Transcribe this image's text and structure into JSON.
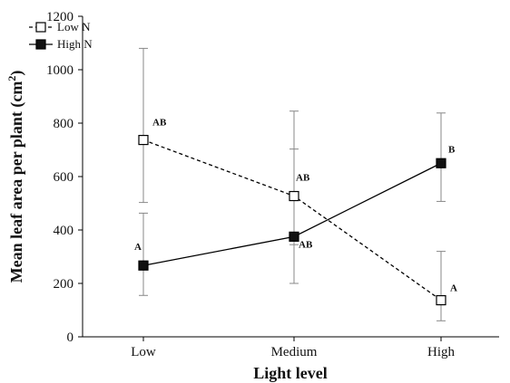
{
  "chart_data": {
    "type": "line",
    "title": "",
    "xlabel": "Light level",
    "ylabel": "Mean leaf area per plant (cm",
    "ylabel_sup": "2",
    "ylabel_close": ")",
    "categories": [
      "Low",
      "Medium",
      "High"
    ],
    "ylim": [
      0,
      1200
    ],
    "yticks": [
      0,
      200,
      400,
      600,
      800,
      1000,
      1200
    ],
    "grid": false,
    "legend_position": "top-left",
    "series": [
      {
        "name": "Low N",
        "style": "dashed",
        "marker": "open-square",
        "color": "#000000",
        "values": [
          737,
          527,
          137
        ],
        "err_low": [
          503,
          345,
          60
        ],
        "err_high": [
          1080,
          845,
          320
        ],
        "labels": [
          "AB",
          "AB",
          "A"
        ]
      },
      {
        "name": "High N",
        "style": "solid",
        "marker": "filled-square",
        "color": "#000000",
        "values": [
          267,
          375,
          650
        ],
        "err_low": [
          155,
          200,
          507
        ],
        "err_high": [
          463,
          703,
          838
        ],
        "labels": [
          "A",
          "AB",
          "B"
        ]
      }
    ]
  }
}
